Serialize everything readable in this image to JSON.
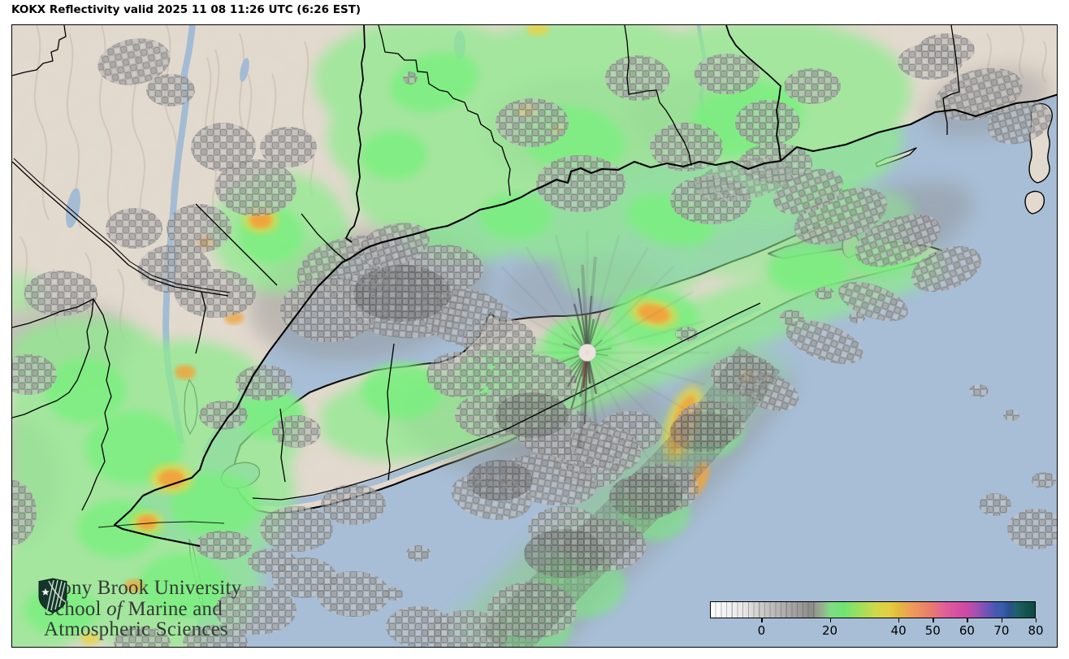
{
  "title": "KOKX Reflectivity valid 2025 11 08 11:26 UTC (6:26 EST)",
  "radar": {
    "station": "KOKX",
    "product": "Reflectivity",
    "valid_utc": "2025 11 08 11:26 UTC",
    "valid_local": "6:26 EST"
  },
  "logo": {
    "line1": "Stony Brook University",
    "line2_pre": "School ",
    "line2_italic": "of",
    "line2_post": " Marine and",
    "line3": "Atmospheric Sciences"
  },
  "colorbar": {
    "tick_labels": [
      "0",
      "20",
      "40",
      "50",
      "60",
      "70",
      "80"
    ],
    "tick_pct": [
      15.8,
      36.8,
      57.9,
      68.4,
      78.9,
      89.5,
      100
    ],
    "stops": [
      {
        "p": 0,
        "c": "#ffffff"
      },
      {
        "p": 10,
        "c": "#e9e6e6"
      },
      {
        "p": 16,
        "c": "#cbc8c8"
      },
      {
        "p": 24,
        "c": "#aaa7a7"
      },
      {
        "p": 31,
        "c": "#8f8c8c"
      },
      {
        "p": 34,
        "c": "#96ad90"
      },
      {
        "p": 37,
        "c": "#80dc85"
      },
      {
        "p": 41,
        "c": "#6fe472"
      },
      {
        "p": 46,
        "c": "#a0df5b"
      },
      {
        "p": 51,
        "c": "#cfd94a"
      },
      {
        "p": 55,
        "c": "#e5cd43"
      },
      {
        "p": 58,
        "c": "#e2b93c"
      },
      {
        "p": 61,
        "c": "#eca354"
      },
      {
        "p": 65,
        "c": "#ec8a62"
      },
      {
        "p": 68,
        "c": "#e97b6c"
      },
      {
        "p": 72,
        "c": "#e0619b"
      },
      {
        "p": 76,
        "c": "#d84fa0"
      },
      {
        "p": 79,
        "c": "#cc49a7"
      },
      {
        "p": 82,
        "c": "#a052b0"
      },
      {
        "p": 85,
        "c": "#7452b8"
      },
      {
        "p": 88,
        "c": "#4558b0"
      },
      {
        "p": 90,
        "c": "#3a5dae"
      },
      {
        "p": 92,
        "c": "#2b4f90"
      },
      {
        "p": 94,
        "c": "#20606c"
      },
      {
        "p": 97,
        "c": "#13564f"
      },
      {
        "p": 100,
        "c": "#0d4a41"
      }
    ]
  },
  "colors": {
    "water": "#a7bed6",
    "land": "#e3dacf",
    "echo_green": "#8deb8d",
    "echo_green_bright": "#79ef7e",
    "echo_yellow": "#e6d44b",
    "echo_orange": "#f0a43c",
    "clutter_gray": "#9e9e9e",
    "radar_center_fill": "#ece2de",
    "logo_shield_green": "#14352a",
    "logo_text": "#333b35",
    "colorbar_border": "#000000",
    "title_text": "#000000"
  }
}
